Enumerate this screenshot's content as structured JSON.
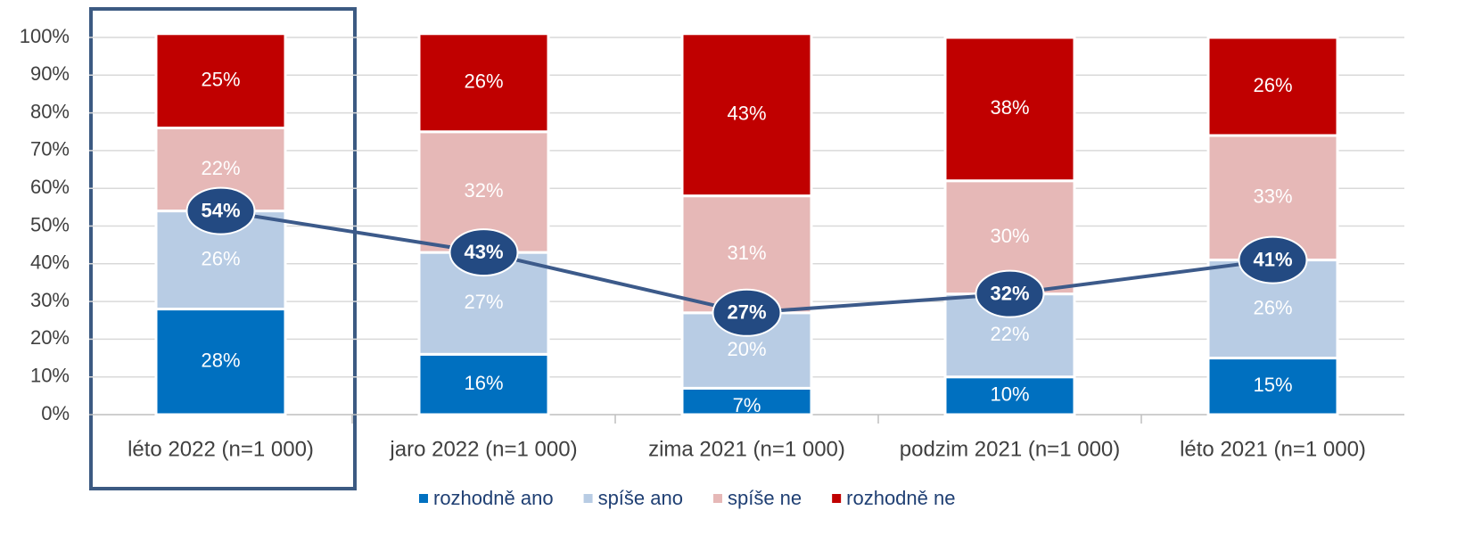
{
  "chart_data": {
    "type": "bar",
    "stacked": true,
    "categories": [
      "léto 2022 (n=1 000)",
      "jaro 2022 (n=1 000)",
      "zima 2021 (n=1 000)",
      "podzim 2021 (n=1 000)",
      "léto 2021 (n=1 000)"
    ],
    "series": [
      {
        "name": "rozhodně ano",
        "color": "#0070c0",
        "values": [
          28,
          16,
          7,
          10,
          15
        ],
        "value_labels": [
          "28%",
          "16%",
          "7%",
          "10%",
          "15%"
        ]
      },
      {
        "name": "spíše ano",
        "color": "#b8cce4",
        "values": [
          26,
          27,
          20,
          22,
          26
        ],
        "value_labels": [
          "26%",
          "27%",
          "20%",
          "22%",
          "26%"
        ]
      },
      {
        "name": "spíše ne",
        "color": "#e6b8b7",
        "values": [
          22,
          32,
          31,
          30,
          33
        ],
        "value_labels": [
          "22%",
          "32%",
          "31%",
          "30%",
          "33%"
        ]
      },
      {
        "name": "rozhodně ne",
        "color": "#c00000",
        "values": [
          25,
          26,
          43,
          38,
          26
        ],
        "value_labels": [
          "25%",
          "26%",
          "43%",
          "38%",
          "26%"
        ]
      }
    ],
    "line": {
      "color": "#3c5a8a",
      "marker_color": "#234a82",
      "values": [
        54,
        43,
        27,
        32,
        41
      ],
      "value_labels": [
        "54%",
        "43%",
        "27%",
        "32%",
        "41%"
      ]
    },
    "ylim": [
      0,
      100
    ],
    "yticks": [
      {
        "value": 0,
        "label": "0%"
      },
      {
        "value": 10,
        "label": "10%"
      },
      {
        "value": 20,
        "label": "20%"
      },
      {
        "value": 30,
        "label": "30%"
      },
      {
        "value": 40,
        "label": "40%"
      },
      {
        "value": 50,
        "label": "50%"
      },
      {
        "value": 60,
        "label": "60%"
      },
      {
        "value": 70,
        "label": "70%"
      },
      {
        "value": 80,
        "label": "80%"
      },
      {
        "value": 90,
        "label": "90%"
      },
      {
        "value": 100,
        "label": "100%"
      }
    ],
    "grid": true
  }
}
